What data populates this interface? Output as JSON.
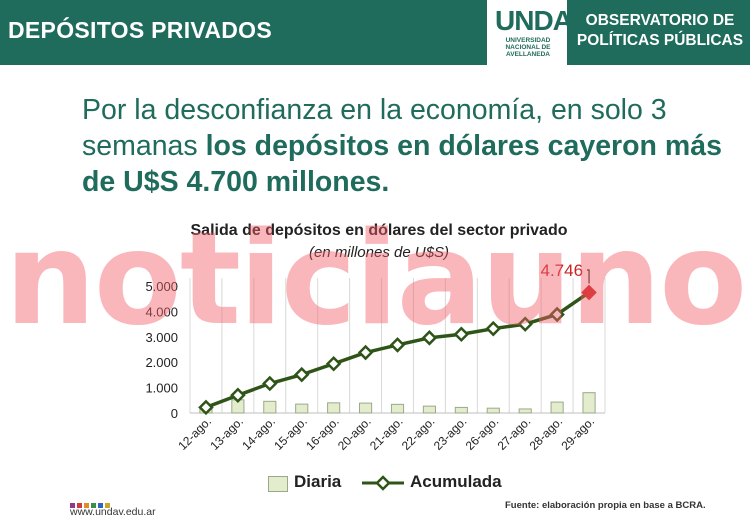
{
  "header": {
    "title": "DEPÓSITOS PRIVADOS",
    "logo_word": "UNDAV",
    "logo_lines": [
      "UNIVERSIDAD",
      "NACIONAL DE",
      "AVELLANEDA"
    ],
    "observatorio": "OBSERVATORIO DE POLÍTICAS PÚBLICAS"
  },
  "headline": {
    "regular": "Por la desconfianza en la economía, en solo 3 semanas ",
    "bold": "los depósitos en dólares cayeron más de U$S 4.700 millones."
  },
  "watermark": "noticiauno",
  "chart_data": {
    "type": "bar",
    "title": "Salida de depósitos en dólares del sector privado",
    "subtitle": "(en millones de U$S)",
    "categories": [
      "12-ago.",
      "13-ago.",
      "14-ago.",
      "15-ago.",
      "16-ago.",
      "20-ago.",
      "21-ago.",
      "22-ago.",
      "23-ago.",
      "26-ago.",
      "27-ago.",
      "28-ago.",
      "29-ago."
    ],
    "series": [
      {
        "name": "Diaria",
        "type": "bar",
        "values": [
          220,
          520,
          460,
          350,
          400,
          390,
          340,
          270,
          220,
          190,
          160,
          430,
          800
        ]
      },
      {
        "name": "Acumulada",
        "type": "line",
        "values": [
          220,
          700,
          1160,
          1510,
          1940,
          2380,
          2680,
          2960,
          3100,
          3320,
          3500,
          3880,
          4746
        ]
      }
    ],
    "ylim": [
      0,
      5000
    ],
    "yticks": [
      0,
      1000,
      2000,
      3000,
      4000,
      5000
    ],
    "ytick_labels": [
      "0",
      "1.000",
      "2.000",
      "3.000",
      "4.000",
      "5.000"
    ],
    "annotation": "4.746",
    "grid": "vertical",
    "legend": "bottom"
  },
  "colors": {
    "brand": "#1f6b5c",
    "bar_fill": "#e3eccd",
    "bar_stroke": "#9aa98a",
    "line": "#2f5418",
    "highlight": "#cc2222"
  },
  "footer": {
    "url": "www.undav.edu.ar",
    "source": "Fuente: elaboración propia en base a BCRA.",
    "dot_colors": [
      "#8e3a8e",
      "#d43a3a",
      "#e58a2a",
      "#3a8e4a",
      "#2a6ab0",
      "#c8a82a"
    ]
  }
}
